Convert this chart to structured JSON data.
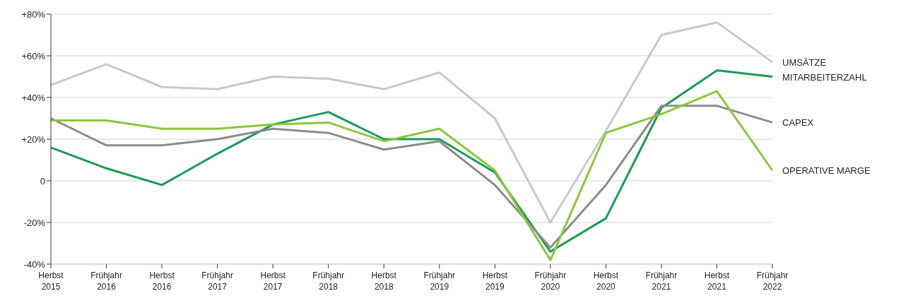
{
  "chart_data": {
    "type": "line",
    "categories": [
      "Herbst\n2015",
      "Frühjahr\n2016",
      "Herbst\n2016",
      "Frühjahr\n2017",
      "Herbst\n2017",
      "Frühjahr\n2018",
      "Herbst\n2018",
      "Frühjahr\n2019",
      "Herbst\n2019",
      "Frühjahr\n2020",
      "Herbst\n2020",
      "Frühjahr\n2021",
      "Herbst\n2021",
      "Frühjahr\n2022"
    ],
    "series": [
      {
        "name": "UMSÄTZE",
        "color": "#c8c8c8",
        "values": [
          46,
          56,
          45,
          44,
          50,
          49,
          44,
          52,
          30,
          -20,
          24,
          70,
          76,
          57
        ]
      },
      {
        "name": "MITARBEITERZAHL",
        "color": "#1a9a55",
        "values": [
          16,
          6,
          -2,
          13,
          27,
          33,
          20,
          20,
          4,
          -34,
          -18,
          35,
          53,
          50
        ]
      },
      {
        "name": "CAPEX",
        "color": "#8c8c8c",
        "values": [
          30,
          17,
          17,
          20,
          25,
          23,
          15,
          19,
          -2,
          -32,
          -2,
          36,
          36,
          28
        ]
      },
      {
        "name": "OPERATIVE MARGE",
        "color": "#8cc63e",
        "values": [
          29,
          29,
          25,
          25,
          27,
          28,
          19,
          25,
          5,
          -38,
          23,
          32,
          43,
          5
        ]
      }
    ],
    "ylim": [
      -40,
      80
    ],
    "yticks": [
      {
        "value": -40,
        "label": "-40%"
      },
      {
        "value": -20,
        "label": "-20%"
      },
      {
        "value": 0,
        "label": "0"
      },
      {
        "value": 20,
        "label": "+20%"
      },
      {
        "value": 40,
        "label": "+40%"
      },
      {
        "value": 60,
        "label": "+60%"
      },
      {
        "value": 80,
        "label": "+80%"
      }
    ],
    "grid": "y",
    "legend": false,
    "marker": "none",
    "line_style": "solid"
  }
}
